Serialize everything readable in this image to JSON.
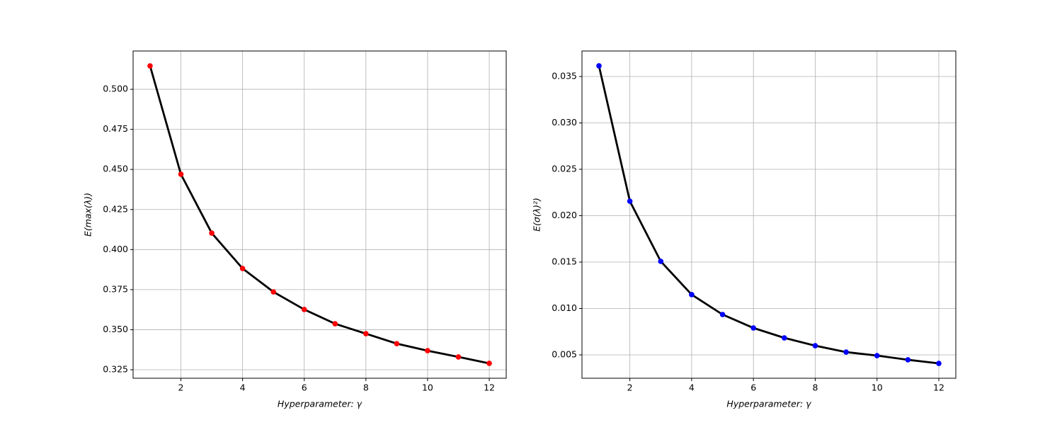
{
  "chart_data": [
    {
      "type": "line",
      "xlabel": "Hyperparameter: γ",
      "ylabel": "E(max(λ))",
      "x": [
        1,
        2,
        3,
        4,
        5,
        6,
        7,
        8,
        9,
        10,
        11,
        12
      ],
      "series": [
        {
          "color": "#000000",
          "marker_color": "#ff0000",
          "values": [
            0.5146,
            0.447,
            0.4103,
            0.3882,
            0.3736,
            0.3626,
            0.3537,
            0.3475,
            0.3413,
            0.3369,
            0.333,
            0.329
          ]
        }
      ],
      "xlim": [
        0.45,
        12.55
      ],
      "ylim": [
        0.3197,
        0.5239
      ],
      "xticks": [
        2,
        4,
        6,
        8,
        10,
        12
      ],
      "yticks": [
        0.325,
        {
          "value": 0.35,
          "label": "0.350"
        },
        0.375,
        {
          "value": 0.4,
          "label": "0.400"
        },
        0.425,
        {
          "value": 0.45,
          "label": "0.450"
        },
        0.475,
        {
          "value": 0.5,
          "label": "0.500"
        }
      ],
      "grid": true
    },
    {
      "type": "line",
      "xlabel": "Hyperparameter: γ",
      "ylabel": "E(σ(λ)²)",
      "x": [
        1,
        2,
        3,
        4,
        5,
        6,
        7,
        8,
        9,
        10,
        11,
        12
      ],
      "series": [
        {
          "color": "#000000",
          "marker_color": "#0000ff",
          "values": [
            0.03615,
            0.02156,
            0.01508,
            0.01149,
            0.00935,
            0.0079,
            0.00683,
            0.00599,
            0.0053,
            0.00492,
            0.00447,
            0.00408
          ]
        }
      ],
      "xlim": [
        0.45,
        12.55
      ],
      "ylim": [
        0.00248,
        0.03775
      ],
      "xticks": [
        2,
        4,
        6,
        8,
        10,
        12
      ],
      "yticks": [
        0.005,
        {
          "value": 0.01,
          "label": "0.010"
        },
        0.015,
        {
          "value": 0.02,
          "label": "0.020"
        },
        0.025,
        {
          "value": 0.03,
          "label": "0.030"
        },
        0.035
      ],
      "grid": true
    }
  ]
}
